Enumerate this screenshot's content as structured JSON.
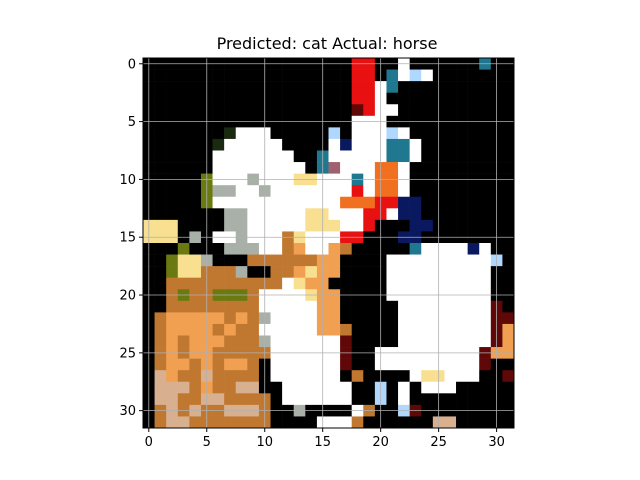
{
  "chart_data": {
    "type": "heatmap",
    "title": "Predicted: cat Actual: horse",
    "xlabel": "",
    "ylabel": "",
    "xlim": [
      -0.5,
      31.5
    ],
    "ylim": [
      31.5,
      -0.5
    ],
    "x_ticks": [
      0,
      5,
      10,
      15,
      20,
      25,
      30
    ],
    "y_ticks": [
      0,
      5,
      10,
      15,
      20,
      25,
      30
    ],
    "grid": true,
    "image_size": [
      32,
      32
    ],
    "palette": {
      "k": "#000000",
      "w": "#ffffff",
      "r": "#e81010",
      "o": "#f07020",
      "y": "#f8e090",
      "s": "#f0a050",
      "b": "#c07830",
      "t": "#d8b090",
      "g": "#a8b0a8",
      "n": "#0a1860",
      "c": "#207890",
      "v": "#6a7a10",
      "d": "#1a2a10",
      "p": "#a06070",
      "m": "#600808",
      "l": "#b0d8ff"
    },
    "pixels": [
      "kkkkkkkkkkkkkkkkkkrrkkwkkkkkkckk",
      "kkkkkkkkkkkkkkkkkkrrkcwlwkkkkkkk",
      "kkkkkkkkkkkkkkkkkkrrwckkkkkkkkkk",
      "kkkkkkkkkkkkkkkkkkrrwkkkkkkkkkkk",
      "kkkkkkkkkkkkkkkkkkmrwwkkkkkkkkkk",
      "kkkkkkkkkkkkkkkkkkwwwkkkkkkkkkkk",
      "kkkkkkkdwwwkkkkklkwwwlwkkkkkkkkk",
      "kkkkkkdwwwwwkkkkwnwwwccwkkkkkkkk",
      "kkkkkkwwwwwwwkkcwwwwwccwkkkkkkkk",
      "kkkkkkwwwwwwwwkcpwwwoowkkkkkkkkk",
      "kkkkkvwwwgwwwyywwwcwoowkkkkkkkkk",
      "kkkkkvggwwgwwwwwwwrwoowkkkkkkkkk",
      "kkkkkvwwwwwwwwwwwooorrnnkkkkkkkk",
      "kkkkkkkggwwwwwyywwwrrwnnkkkkkkkk",
      "yyykkkkggwwwwwyyywwrkkknnkkkkkkk",
      "yyykgkwwgwwwbywwwrrkkknnkkkkkkkk",
      "kkkvkkkgggwwbswwsbkkkkkcwwwwnwkk",
      "kkvyygkkkbbbbbbsskkkkwwwwwwwwwlk",
      "kkvyybbbgkkbbsysskkkkwwwwwwwwwkk",
      "kkbbbbbbbbbbwysskkkkkwwwwwwwwwkk",
      "kkbvbbvvvbwwwwysskkkkwwwwwwwwwkk",
      "kkbbbbbbbbwwwwwsskkkkkwwwwwwwwmk",
      "kbsssssbsbgwwwwsskkkkkwwwwwwwwmm",
      "kbssssbsbbwwwwwssbkkkkwwwwwwwwms",
      "kbsbsssbbbgwwwwwwmkkkkwwwwwwwwms",
      "kbsbssbbbbbwwwwwwmkkwwwwwwwwwmss",
      "kbssbsbssbkwwwwwwmkkwwwwwwwwwmkk",
      "ktsbbtbbbbkwwwwwwkbkkkkwyywwwkkm",
      "ktttbsbbttkkwwwwwwkklkwkwwwkkkkk",
      "kttbbttbbbbkwwwwwwkklkwkkkkkkkkk",
      "kbtbtbbtttbkkgkkkkwbkklmkkkkkkkk",
      "kbttbbbbbbbkkkkwwwbkkkkkkttkkkkk"
    ]
  }
}
